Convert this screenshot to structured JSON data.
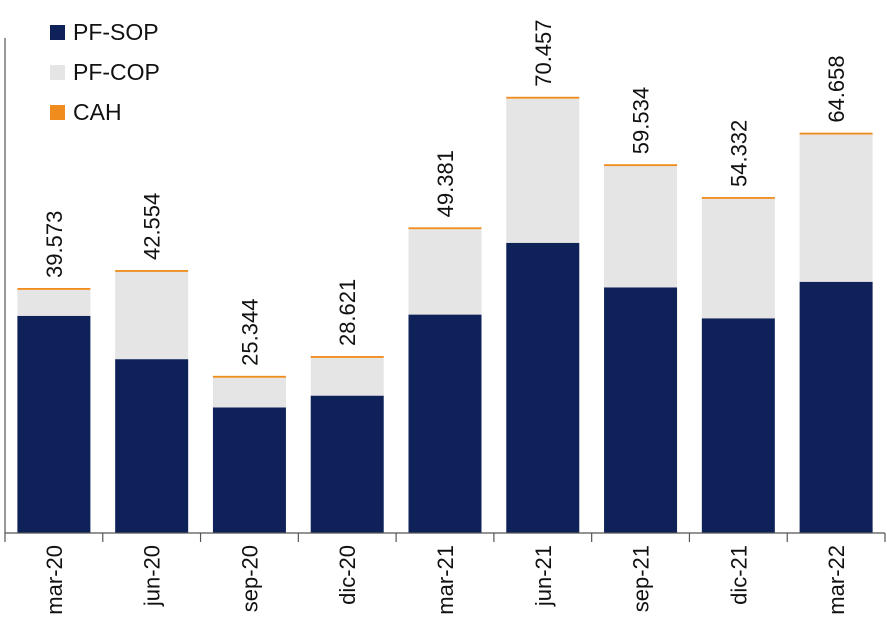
{
  "chart_data": {
    "type": "bar",
    "stacked": true,
    "categories": [
      "mar-20",
      "jun-20",
      "sep-20",
      "dic-20",
      "mar-21",
      "jun-21",
      "sep-21",
      "dic-21",
      "mar-22"
    ],
    "series": [
      {
        "name": "PF-SOP",
        "color": "#0e2259",
        "values": [
          35.1,
          28.1,
          20.3,
          22.2,
          35.3,
          46.9,
          39.7,
          34.7,
          40.6
        ]
      },
      {
        "name": "PF-COP",
        "color": "#e6e5e6",
        "values": [
          4.2,
          14.1,
          4.8,
          6.1,
          13.8,
          23.3,
          19.6,
          19.3,
          23.8
        ]
      },
      {
        "name": "CAH",
        "color": "#f08c1e",
        "values": [
          0.3,
          0.3,
          0.3,
          0.3,
          0.3,
          0.3,
          0.3,
          0.3,
          0.3
        ]
      }
    ],
    "totals": [
      "39.573",
      "42.554",
      "25.344",
      "28.621",
      "49.381",
      "70.457",
      "59.534",
      "54.332",
      "64.658"
    ],
    "title": "",
    "xlabel": "",
    "ylabel": "",
    "ylim": [
      0,
      80
    ],
    "legend_position": "top-left",
    "grid": false
  }
}
